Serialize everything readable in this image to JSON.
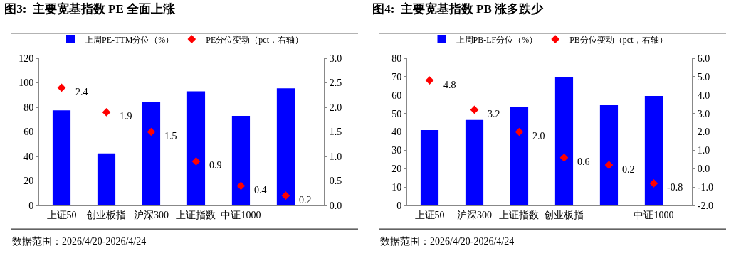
{
  "chart_data": [
    {
      "type": "bar",
      "title": "图3:  主要宽基指数 PE 全面上涨",
      "categories": [
        "上证50",
        "创业板指",
        "沪深300",
        "上证指数",
        "中证1000",
        null
      ],
      "series": [
        {
          "name": "上周PE-TTM分位（%）",
          "color": "#0000ff",
          "values": [
            77.5,
            42.5,
            84,
            93,
            73,
            95.5
          ]
        },
        {
          "name": "PE分位变动（pct，右轴）",
          "type": "scatter",
          "axis": "y2",
          "color": "#ff0000",
          "marker": "diamond",
          "values": [
            2.4,
            1.9,
            1.5,
            0.9,
            0.4,
            0.2
          ],
          "value_labels": [
            "2.4",
            "1.9",
            "1.5",
            "0.9",
            "0.4",
            "0.2"
          ]
        }
      ],
      "ylim": [
        0,
        120
      ],
      "yticks": [
        0,
        20,
        40,
        60,
        80,
        100,
        120
      ],
      "y2lim": [
        0,
        3
      ],
      "y2ticks": [
        {
          "value": 0,
          "label": "0.0"
        },
        {
          "value": 0.5,
          "label": "0.5"
        },
        {
          "value": 1,
          "label": "1.0"
        },
        {
          "value": 1.5,
          "label": "1.5"
        },
        {
          "value": 2,
          "label": "2.0"
        },
        {
          "value": 2.5,
          "label": "2.5"
        },
        {
          "value": 3,
          "label": "3.0"
        }
      ],
      "legend": "top",
      "annotations": [
        "数据范围：2026/4/20-2026/4/24"
      ]
    },
    {
      "type": "bar",
      "title": "图4:  主要宽基指数 PB 涨多跌少",
      "categories": [
        "上证50",
        "沪深300",
        "上证指数",
        "创业板指",
        null,
        "中证1000"
      ],
      "series": [
        {
          "name": "上周PB-LF分位（%）",
          "color": "#0000ff",
          "values": [
            41,
            46.5,
            53.5,
            70,
            54.5,
            59.5
          ]
        },
        {
          "name": "PB分位变动（pct，右轴）",
          "type": "scatter",
          "axis": "y2",
          "color": "#ff0000",
          "marker": "diamond",
          "values": [
            4.8,
            3.2,
            2.0,
            0.6,
            0.2,
            -0.8
          ],
          "value_labels": [
            "4.8",
            "3.2",
            "2.0",
            "0.6",
            "0.2",
            "-0.8"
          ]
        }
      ],
      "ylim": [
        0,
        80
      ],
      "yticks": [
        0,
        10,
        20,
        30,
        40,
        50,
        60,
        70,
        80
      ],
      "y2lim": [
        -2,
        6
      ],
      "y2ticks": [
        {
          "value": -2,
          "label": "-2.0"
        },
        {
          "value": -1,
          "label": "-1.0"
        },
        {
          "value": 0,
          "label": "0.0"
        },
        {
          "value": 1,
          "label": "1.0"
        },
        {
          "value": 2,
          "label": "2.0"
        },
        {
          "value": 3,
          "label": "3.0"
        },
        {
          "value": 4,
          "label": "4.0"
        },
        {
          "value": 5,
          "label": "5.0"
        },
        {
          "value": 6,
          "label": "6.0"
        }
      ],
      "legend": "top",
      "annotations": [
        "数据范围：2026/4/20-2026/4/24"
      ]
    }
  ]
}
